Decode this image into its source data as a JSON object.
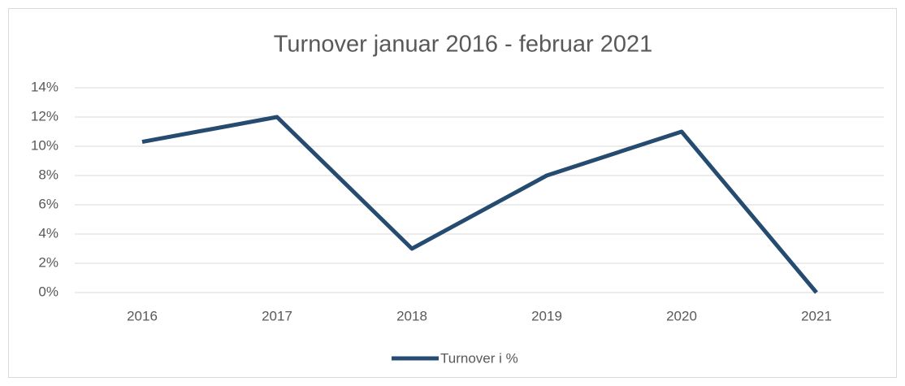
{
  "chart_data": {
    "type": "line",
    "title": "Turnover januar 2016 - februar 2021",
    "categories": [
      "2016",
      "2017",
      "2018",
      "2019",
      "2020",
      "2021"
    ],
    "series": [
      {
        "name": "Turnover i %",
        "color": "#264b70",
        "values": [
          10.3,
          12,
          3,
          8,
          11,
          0
        ]
      }
    ],
    "ylim": [
      0,
      14
    ],
    "yticks": [
      {
        "value": 0,
        "label": "0%"
      },
      {
        "value": 2,
        "label": "2%"
      },
      {
        "value": 4,
        "label": "4%"
      },
      {
        "value": 6,
        "label": "6%"
      },
      {
        "value": 8,
        "label": "8%"
      },
      {
        "value": 10,
        "label": "10%"
      },
      {
        "value": 12,
        "label": "12%"
      },
      {
        "value": 14,
        "label": "14%"
      }
    ],
    "grid": true,
    "legend": "bottom"
  }
}
